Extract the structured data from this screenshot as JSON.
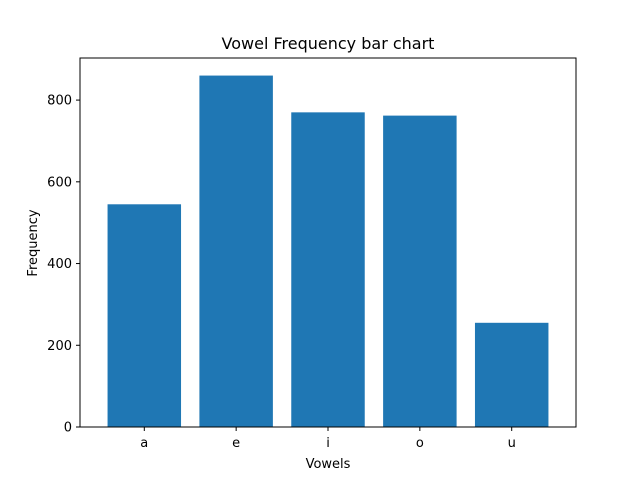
{
  "chart_data": {
    "type": "bar",
    "title": "Vowel Frequency bar chart",
    "xlabel": "Vowels",
    "ylabel": "Frequency",
    "categories": [
      "a",
      "e",
      "i",
      "o",
      "u"
    ],
    "values": [
      545,
      860,
      770,
      762,
      255
    ],
    "ylim": [
      0,
      903
    ],
    "yticks": [
      0,
      200,
      400,
      600,
      800
    ],
    "grid": false,
    "bar_color": "#1f77b4"
  }
}
